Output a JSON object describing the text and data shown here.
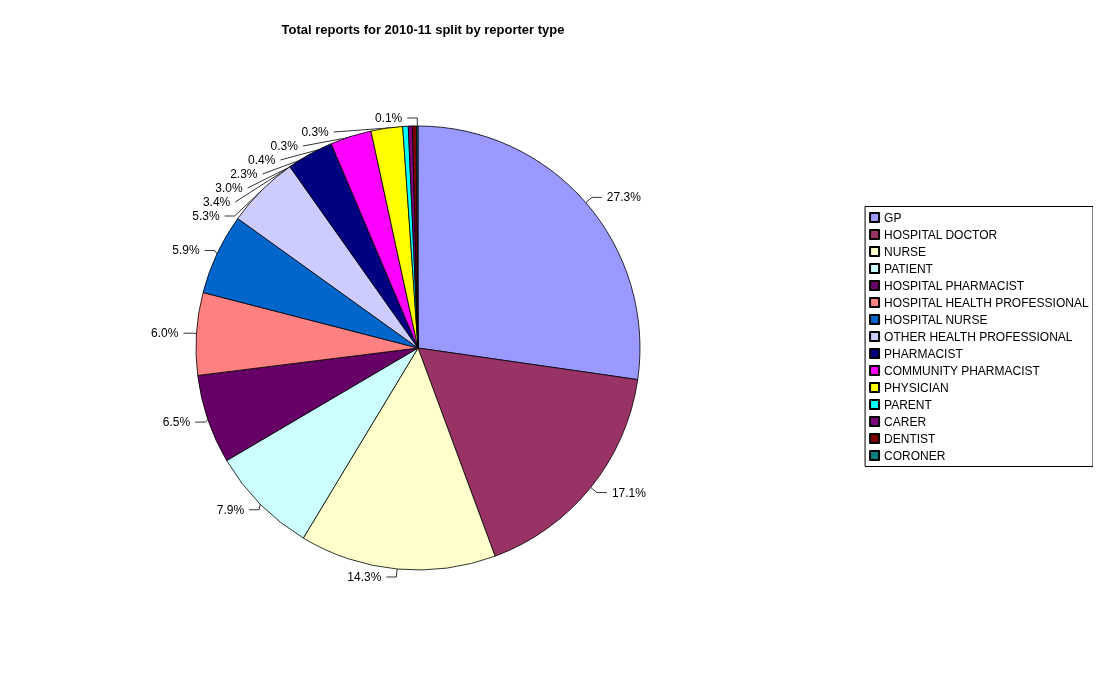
{
  "chart_data": {
    "type": "pie",
    "title": "Total reports for 2010-11 split by reporter type",
    "categories": [
      "GP",
      "HOSPITAL DOCTOR",
      "NURSE",
      "PATIENT",
      "HOSPITAL PHARMACIST",
      "HOSPITAL HEALTH PROFESSIONAL",
      "HOSPITAL NURSE",
      "OTHER HEALTH PROFESSIONAL",
      "PHARMACIST",
      "COMMUNITY PHARMACIST",
      "PHYSICIAN",
      "PARENT",
      "CARER",
      "DENTIST",
      "CORONER"
    ],
    "values": [
      27.3,
      17.1,
      14.3,
      7.9,
      6.5,
      6.0,
      5.9,
      5.3,
      3.4,
      3.0,
      2.3,
      0.4,
      0.3,
      0.3,
      0.1
    ],
    "value_labels": [
      "27.3%",
      "17.1%",
      "14.3%",
      "7.9%",
      "6.5%",
      "6.0%",
      "5.9%",
      "5.3%",
      "3.4%",
      "3.0%",
      "2.3%",
      "0.4%",
      "0.3%",
      "0.3%",
      "0.1%"
    ],
    "colors": [
      "#9999ff",
      "#993366",
      "#ffffcc",
      "#ccffff",
      "#660066",
      "#ff8080",
      "#0066cc",
      "#ccccff",
      "#000080",
      "#ff00ff",
      "#ffff00",
      "#00ffff",
      "#800080",
      "#800000",
      "#008080"
    ],
    "legend": "right"
  }
}
